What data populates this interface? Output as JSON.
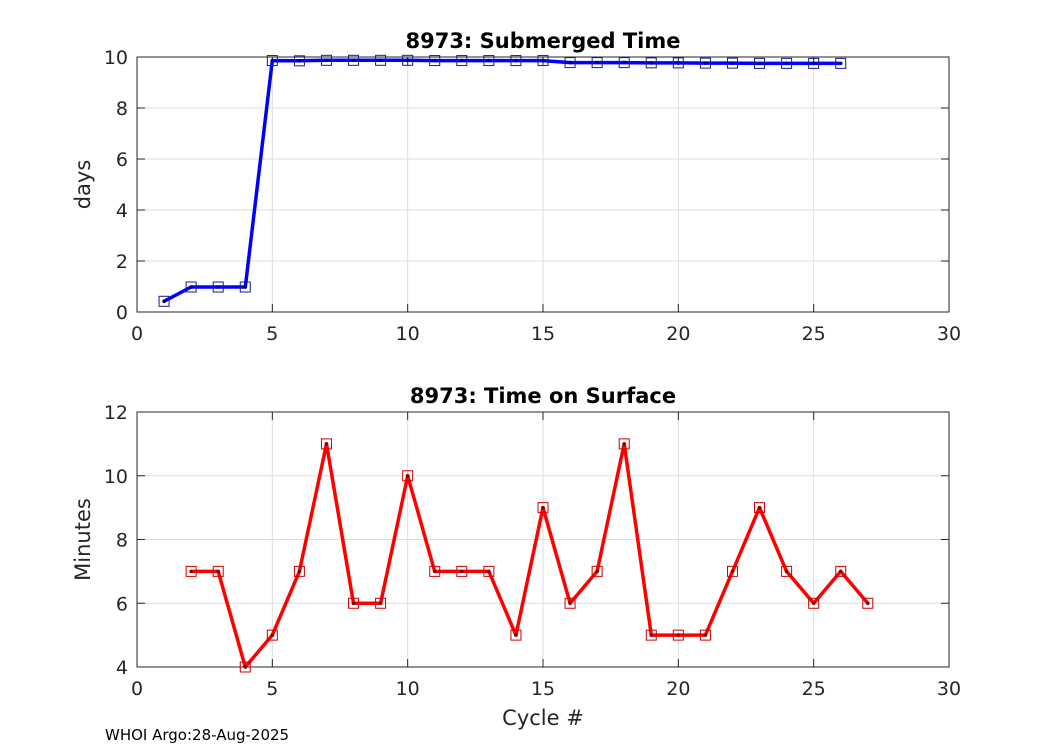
{
  "footer": "WHOI Argo:28-Aug-2025",
  "chart_data": [
    {
      "type": "line",
      "title": "8973: Submerged Time",
      "xlabel": "",
      "ylabel": "days",
      "xlim": [
        0,
        30
      ],
      "ylim": [
        0,
        10
      ],
      "xticks": [
        "0",
        "5",
        "10",
        "15",
        "20",
        "25",
        "30"
      ],
      "yticks": [
        "0",
        "2",
        "4",
        "6",
        "8",
        "10"
      ],
      "grid": true,
      "color": "#0000ff",
      "series": [
        {
          "x": [
            1,
            2,
            3,
            4,
            5,
            6,
            7,
            8,
            9,
            10,
            11,
            12,
            13,
            14,
            15,
            16,
            17,
            18,
            19,
            20,
            21,
            22,
            23,
            24,
            25,
            26
          ],
          "y": [
            0.42,
            0.98,
            0.98,
            0.98,
            9.86,
            9.85,
            9.87,
            9.87,
            9.87,
            9.87,
            9.86,
            9.86,
            9.86,
            9.86,
            9.86,
            9.78,
            9.78,
            9.78,
            9.77,
            9.77,
            9.76,
            9.76,
            9.75,
            9.75,
            9.75,
            9.75
          ]
        }
      ]
    },
    {
      "type": "line",
      "title": "8973: Time on Surface",
      "xlabel": "Cycle #",
      "ylabel": "Minutes",
      "xlim": [
        0,
        30
      ],
      "ylim": [
        4,
        12
      ],
      "xticks": [
        "0",
        "5",
        "10",
        "15",
        "20",
        "25",
        "30"
      ],
      "yticks": [
        "4",
        "6",
        "8",
        "10",
        "12"
      ],
      "grid": true,
      "color": "#ff0000",
      "series": [
        {
          "x": [
            2,
            3,
            4,
            5,
            6,
            7,
            8,
            9,
            10,
            11,
            12,
            13,
            14,
            15,
            16,
            17,
            18,
            19,
            20,
            21,
            22,
            23,
            24,
            25,
            26,
            27
          ],
          "y": [
            7,
            7,
            4,
            5,
            7,
            11,
            6,
            6,
            10,
            7,
            7,
            7,
            5,
            9,
            6,
            7,
            11,
            5,
            5,
            5,
            7,
            9,
            7,
            6,
            7,
            6
          ]
        }
      ]
    }
  ]
}
